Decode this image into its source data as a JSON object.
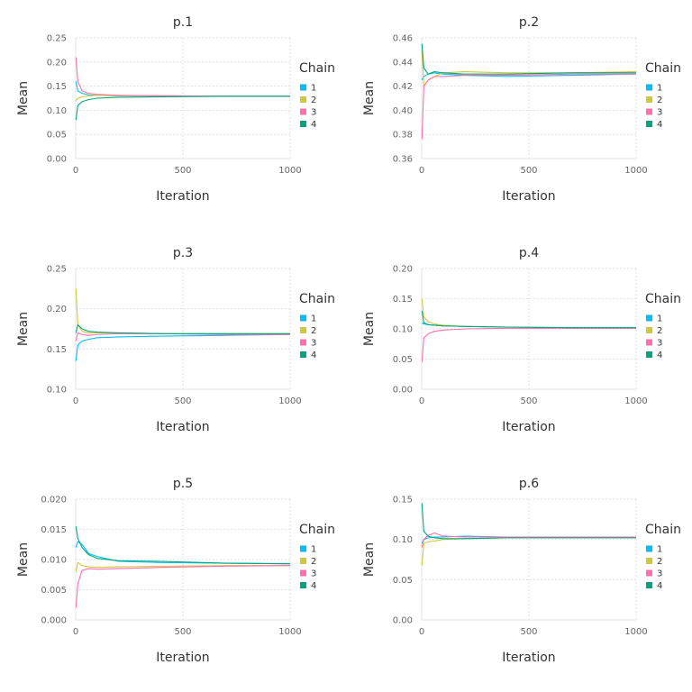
{
  "colors": {
    "1": "#00bfff",
    "2": "#d4c83a",
    "3": "#ff6fae",
    "4": "#00a67e"
  },
  "chart_data": [
    {
      "type": "line",
      "title": "p.1",
      "xlabel": "Iteration",
      "ylabel": "Mean",
      "xlim": [
        0,
        1000
      ],
      "ylim": [
        0,
        0.25
      ],
      "xticks": [
        0,
        500,
        1000
      ],
      "xtick_labels": [
        "0",
        "500",
        "1000"
      ],
      "yticks": [
        0,
        0.05,
        0.1,
        0.15,
        0.2,
        0.25
      ],
      "ytick_labels": [
        "0.00",
        "0.05",
        "0.10",
        "0.15",
        "0.20",
        "0.25"
      ],
      "legend": {
        "title": "Chain",
        "entries": [
          "1",
          "2",
          "3",
          "4"
        ],
        "position": "right"
      },
      "grid": true,
      "series": [
        {
          "name": "1",
          "x": [
            1,
            10,
            30,
            60,
            100,
            200,
            400,
            700,
            1000
          ],
          "y": [
            0.16,
            0.14,
            0.135,
            0.132,
            0.131,
            0.13,
            0.13,
            0.129,
            0.129
          ]
        },
        {
          "name": "2",
          "x": [
            1,
            10,
            30,
            60,
            100,
            200,
            400,
            700,
            1000
          ],
          "y": [
            0.12,
            0.125,
            0.128,
            0.13,
            0.131,
            0.13,
            0.13,
            0.129,
            0.129
          ]
        },
        {
          "name": "3",
          "x": [
            1,
            10,
            30,
            60,
            100,
            200,
            400,
            700,
            1000
          ],
          "y": [
            0.21,
            0.16,
            0.14,
            0.135,
            0.133,
            0.131,
            0.13,
            0.129,
            0.129
          ]
        },
        {
          "name": "4",
          "x": [
            1,
            10,
            30,
            60,
            100,
            200,
            400,
            700,
            1000
          ],
          "y": [
            0.08,
            0.11,
            0.118,
            0.122,
            0.125,
            0.127,
            0.128,
            0.129,
            0.129
          ]
        }
      ]
    },
    {
      "type": "line",
      "title": "p.2",
      "xlabel": "Iteration",
      "ylabel": "Mean",
      "xlim": [
        0,
        1000
      ],
      "ylim": [
        0.36,
        0.46
      ],
      "xticks": [
        0,
        500,
        1000
      ],
      "xtick_labels": [
        "0",
        "500",
        "1000"
      ],
      "yticks": [
        0.36,
        0.38,
        0.4,
        0.42,
        0.44,
        0.46
      ],
      "ytick_labels": [
        "0.36",
        "0.38",
        "0.40",
        "0.42",
        "0.44",
        "0.46"
      ],
      "legend": {
        "title": "Chain",
        "entries": [
          "1",
          "2",
          "3",
          "4"
        ],
        "position": "right"
      },
      "grid": true,
      "series": [
        {
          "name": "1",
          "x": [
            1,
            10,
            30,
            60,
            100,
            200,
            400,
            700,
            1000
          ],
          "y": [
            0.425,
            0.428,
            0.43,
            0.431,
            0.43,
            0.429,
            0.428,
            0.429,
            0.43
          ]
        },
        {
          "name": "2",
          "x": [
            1,
            10,
            30,
            60,
            100,
            200,
            400,
            700,
            1000
          ],
          "y": [
            0.45,
            0.42,
            0.425,
            0.428,
            0.431,
            0.432,
            0.431,
            0.431,
            0.432
          ]
        },
        {
          "name": "3",
          "x": [
            1,
            10,
            30,
            60,
            100,
            200,
            400,
            700,
            1000
          ],
          "y": [
            0.376,
            0.42,
            0.425,
            0.428,
            0.428,
            0.429,
            0.429,
            0.43,
            0.43
          ]
        },
        {
          "name": "4",
          "x": [
            1,
            10,
            30,
            60,
            100,
            200,
            400,
            700,
            1000
          ],
          "y": [
            0.455,
            0.435,
            0.43,
            0.432,
            0.431,
            0.43,
            0.43,
            0.431,
            0.431
          ]
        }
      ]
    },
    {
      "type": "line",
      "title": "p.3",
      "xlabel": "Iteration",
      "ylabel": "Mean",
      "xlim": [
        0,
        1000
      ],
      "ylim": [
        0.1,
        0.25
      ],
      "xticks": [
        0,
        500,
        1000
      ],
      "xtick_labels": [
        "0",
        "500",
        "1000"
      ],
      "yticks": [
        0.1,
        0.15,
        0.2,
        0.25
      ],
      "ytick_labels": [
        "0.10",
        "0.15",
        "0.20",
        "0.25"
      ],
      "legend": {
        "title": "Chain",
        "entries": [
          "1",
          "2",
          "3",
          "4"
        ],
        "position": "right"
      },
      "grid": true,
      "series": [
        {
          "name": "1",
          "x": [
            1,
            10,
            30,
            60,
            100,
            200,
            400,
            700,
            1000
          ],
          "y": [
            0.135,
            0.155,
            0.16,
            0.162,
            0.164,
            0.165,
            0.166,
            0.167,
            0.168
          ]
        },
        {
          "name": "2",
          "x": [
            1,
            10,
            30,
            60,
            100,
            200,
            400,
            700,
            1000
          ],
          "y": [
            0.225,
            0.18,
            0.172,
            0.17,
            0.17,
            0.17,
            0.169,
            0.169,
            0.169
          ]
        },
        {
          "name": "3",
          "x": [
            1,
            10,
            30,
            60,
            100,
            200,
            400,
            700,
            1000
          ],
          "y": [
            0.16,
            0.17,
            0.168,
            0.167,
            0.168,
            0.169,
            0.169,
            0.168,
            0.168
          ]
        },
        {
          "name": "4",
          "x": [
            1,
            10,
            30,
            60,
            100,
            200,
            400,
            700,
            1000
          ],
          "y": [
            0.17,
            0.18,
            0.175,
            0.172,
            0.171,
            0.17,
            0.169,
            0.169,
            0.169
          ]
        }
      ]
    },
    {
      "type": "line",
      "title": "p.4",
      "xlabel": "Iteration",
      "ylabel": "Mean",
      "xlim": [
        0,
        1000
      ],
      "ylim": [
        0,
        0.2
      ],
      "xticks": [
        0,
        500,
        1000
      ],
      "xtick_labels": [
        "0",
        "500",
        "1000"
      ],
      "yticks": [
        0,
        0.05,
        0.1,
        0.15,
        0.2
      ],
      "ytick_labels": [
        "0.00",
        "0.05",
        "0.10",
        "0.15",
        "0.20"
      ],
      "legend": {
        "title": "Chain",
        "entries": [
          "1",
          "2",
          "3",
          "4"
        ],
        "position": "right"
      },
      "grid": true,
      "series": [
        {
          "name": "1",
          "x": [
            1,
            10,
            30,
            60,
            100,
            200,
            400,
            700,
            1000
          ],
          "y": [
            0.11,
            0.108,
            0.107,
            0.106,
            0.105,
            0.104,
            0.103,
            0.102,
            0.102
          ]
        },
        {
          "name": "2",
          "x": [
            1,
            10,
            30,
            60,
            100,
            200,
            400,
            700,
            1000
          ],
          "y": [
            0.15,
            0.12,
            0.112,
            0.108,
            0.106,
            0.104,
            0.103,
            0.102,
            0.102
          ]
        },
        {
          "name": "3",
          "x": [
            1,
            10,
            30,
            60,
            100,
            200,
            400,
            700,
            1000
          ],
          "y": [
            0.045,
            0.085,
            0.092,
            0.096,
            0.098,
            0.1,
            0.101,
            0.101,
            0.101
          ]
        },
        {
          "name": "4",
          "x": [
            1,
            10,
            30,
            60,
            100,
            200,
            400,
            700,
            1000
          ],
          "y": [
            0.13,
            0.11,
            0.107,
            0.106,
            0.105,
            0.104,
            0.103,
            0.102,
            0.102
          ]
        }
      ]
    },
    {
      "type": "line",
      "title": "p.5",
      "xlabel": "Iteration",
      "ylabel": "Mean",
      "xlim": [
        0,
        1000
      ],
      "ylim": [
        0,
        0.02
      ],
      "xticks": [
        0,
        500,
        1000
      ],
      "xtick_labels": [
        "0",
        "500",
        "1000"
      ],
      "yticks": [
        0,
        0.005,
        0.01,
        0.015,
        0.02
      ],
      "ytick_labels": [
        "0.000",
        "0.005",
        "0.010",
        "0.015",
        "0.020"
      ],
      "legend": {
        "title": "Chain",
        "entries": [
          "1",
          "2",
          "3",
          "4"
        ],
        "position": "right"
      },
      "grid": true,
      "series": [
        {
          "name": "1",
          "x": [
            1,
            10,
            30,
            60,
            100,
            200,
            400,
            700,
            1000
          ],
          "y": [
            0.012,
            0.013,
            0.0125,
            0.011,
            0.0105,
            0.0097,
            0.0095,
            0.0094,
            0.0093
          ]
        },
        {
          "name": "2",
          "x": [
            1,
            10,
            30,
            60,
            100,
            200,
            400,
            700,
            1000
          ],
          "y": [
            0.008,
            0.0095,
            0.009,
            0.0088,
            0.0087,
            0.0088,
            0.0089,
            0.009,
            0.009
          ]
        },
        {
          "name": "3",
          "x": [
            1,
            10,
            30,
            60,
            100,
            200,
            400,
            700,
            1000
          ],
          "y": [
            0.002,
            0.006,
            0.0082,
            0.0085,
            0.0084,
            0.0085,
            0.0087,
            0.0089,
            0.009
          ]
        },
        {
          "name": "4",
          "x": [
            1,
            10,
            30,
            60,
            100,
            200,
            400,
            700,
            1000
          ],
          "y": [
            0.0155,
            0.0135,
            0.012,
            0.0108,
            0.0102,
            0.0098,
            0.0097,
            0.0094,
            0.0093
          ]
        }
      ]
    },
    {
      "type": "line",
      "title": "p.6",
      "xlabel": "Iteration",
      "ylabel": "Mean",
      "xlim": [
        0,
        1000
      ],
      "ylim": [
        0,
        0.15
      ],
      "xticks": [
        0,
        500,
        1000
      ],
      "xtick_labels": [
        "0",
        "500",
        "1000"
      ],
      "yticks": [
        0,
        0.05,
        0.1,
        0.15
      ],
      "ytick_labels": [
        "0.00",
        "0.05",
        "0.10",
        "0.15"
      ],
      "legend": {
        "title": "Chain",
        "entries": [
          "1",
          "2",
          "3",
          "4"
        ],
        "position": "right"
      },
      "grid": true,
      "series": [
        {
          "name": "1",
          "x": [
            1,
            10,
            30,
            60,
            100,
            200,
            400,
            700,
            1000
          ],
          "y": [
            0.095,
            0.1,
            0.102,
            0.103,
            0.103,
            0.104,
            0.103,
            0.103,
            0.103
          ]
        },
        {
          "name": "2",
          "x": [
            1,
            10,
            30,
            60,
            100,
            200,
            400,
            700,
            1000
          ],
          "y": [
            0.068,
            0.095,
            0.097,
            0.098,
            0.1,
            0.101,
            0.102,
            0.102,
            0.102
          ]
        },
        {
          "name": "3",
          "x": [
            1,
            10,
            30,
            60,
            100,
            200,
            400,
            700,
            1000
          ],
          "y": [
            0.09,
            0.1,
            0.105,
            0.108,
            0.104,
            0.103,
            0.103,
            0.103,
            0.103
          ]
        },
        {
          "name": "4",
          "x": [
            1,
            10,
            30,
            60,
            100,
            200,
            400,
            700,
            1000
          ],
          "y": [
            0.145,
            0.11,
            0.104,
            0.102,
            0.101,
            0.101,
            0.102,
            0.102,
            0.102
          ]
        }
      ]
    }
  ]
}
